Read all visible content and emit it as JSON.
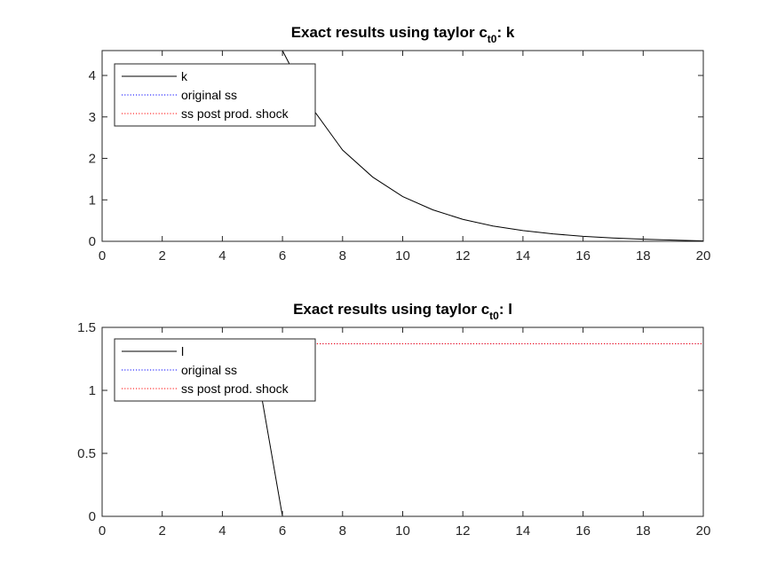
{
  "chart_data": [
    {
      "type": "line",
      "title": "Exact results using taylor c",
      "title_subscript": "t0",
      "title_suffix": ": k",
      "xlabel": "",
      "ylabel": "",
      "xlim": [
        0,
        20
      ],
      "ylim": [
        0,
        4.6
      ],
      "xticks": [
        "0",
        "2",
        "4",
        "6",
        "8",
        "10",
        "12",
        "14",
        "16",
        "18",
        "20"
      ],
      "yticks": [
        "0",
        "1",
        "2",
        "3",
        "4"
      ],
      "grid": false,
      "legend": "top-left",
      "series": [
        {
          "name": "k",
          "style": "solid",
          "color": "#000000",
          "x": [
            1,
            2,
            3,
            4,
            5,
            6,
            7,
            8,
            9,
            10,
            11,
            12,
            13,
            14,
            15,
            16,
            17,
            18,
            19,
            20
          ],
          "y": [
            4.6,
            4.6,
            4.6,
            4.6,
            4.6,
            4.6,
            3.2,
            2.2,
            1.55,
            1.08,
            0.76,
            0.53,
            0.37,
            0.26,
            0.18,
            0.12,
            0.08,
            0.05,
            0.03,
            0.01
          ]
        },
        {
          "name": "original ss",
          "style": "dotted",
          "color": "#0000ff",
          "x": [
            1,
            20
          ],
          "y": [
            4.6,
            4.6
          ]
        },
        {
          "name": "ss post prod. shock",
          "style": "dotted",
          "color": "#ff0000",
          "x": [
            1,
            20
          ],
          "y": [
            4.6,
            4.6
          ]
        }
      ]
    },
    {
      "type": "line",
      "title": "Exact results using taylor c",
      "title_subscript": "t0",
      "title_suffix": ": l",
      "xlabel": "",
      "ylabel": "",
      "xlim": [
        0,
        20
      ],
      "ylim": [
        0,
        1.5
      ],
      "xticks": [
        "0",
        "2",
        "4",
        "6",
        "8",
        "10",
        "12",
        "14",
        "16",
        "18",
        "20"
      ],
      "yticks": [
        "0",
        "0.5",
        "1",
        "1.5"
      ],
      "grid": false,
      "legend": "top-left",
      "series": [
        {
          "name": "l",
          "style": "solid",
          "color": "#000000",
          "x": [
            1,
            2,
            3,
            4,
            5,
            6,
            7,
            8,
            9,
            10,
            11,
            12,
            13,
            14,
            15,
            16,
            17,
            18,
            19,
            20
          ],
          "y": [
            1.37,
            1.37,
            1.37,
            1.37,
            1.37,
            0,
            0,
            0,
            0,
            0,
            0,
            0,
            0,
            0,
            0,
            0,
            0,
            0,
            0,
            0
          ]
        },
        {
          "name": "original ss",
          "style": "dotted",
          "color": "#0000ff",
          "x": [
            1,
            20
          ],
          "y": [
            1.37,
            1.37
          ]
        },
        {
          "name": "ss post prod. shock",
          "style": "dotted",
          "color": "#ff0000",
          "x": [
            1,
            20
          ],
          "y": [
            1.37,
            1.37
          ]
        }
      ]
    }
  ]
}
